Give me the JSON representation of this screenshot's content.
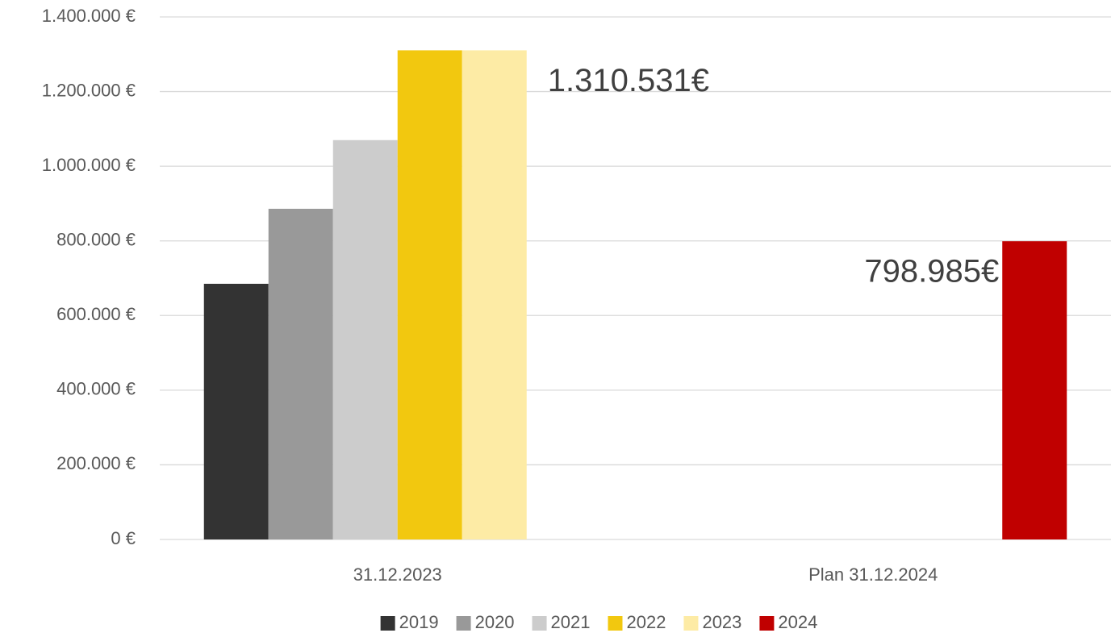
{
  "chart_data": {
    "type": "bar",
    "categories": [
      "31.12.2023",
      "Plan 31.12.2024"
    ],
    "series": [
      {
        "name": "2019",
        "color": "#333333",
        "values": [
          685000,
          null
        ]
      },
      {
        "name": "2020",
        "color": "#999999",
        "values": [
          886000,
          null
        ]
      },
      {
        "name": "2021",
        "color": "#cccccc",
        "values": [
          1070000,
          null
        ]
      },
      {
        "name": "2022",
        "color": "#f2c80f",
        "values": [
          1310531,
          null
        ]
      },
      {
        "name": "2023",
        "color": "#fdeba5",
        "values": [
          1310531,
          null
        ],
        "value_labels": [
          "1.310.531€",
          null
        ]
      },
      {
        "name": "2024",
        "color": "#c00000",
        "values": [
          null,
          798985
        ],
        "value_labels": [
          null,
          "798.985€"
        ]
      }
    ],
    "ylim": [
      0,
      1400000
    ],
    "yticks": [
      {
        "value": 0,
        "label": "0 €"
      },
      {
        "value": 200000,
        "label": "200.000 €"
      },
      {
        "value": 400000,
        "label": "400.000 €"
      },
      {
        "value": 600000,
        "label": "600.000 €"
      },
      {
        "value": 800000,
        "label": "800.000 €"
      },
      {
        "value": 1000000,
        "label": "1.000.000 €"
      },
      {
        "value": 1200000,
        "label": "1.200.000 €"
      },
      {
        "value": 1400000,
        "label": "1.400.000 €"
      }
    ],
    "grid": true,
    "legend": "bottom"
  }
}
